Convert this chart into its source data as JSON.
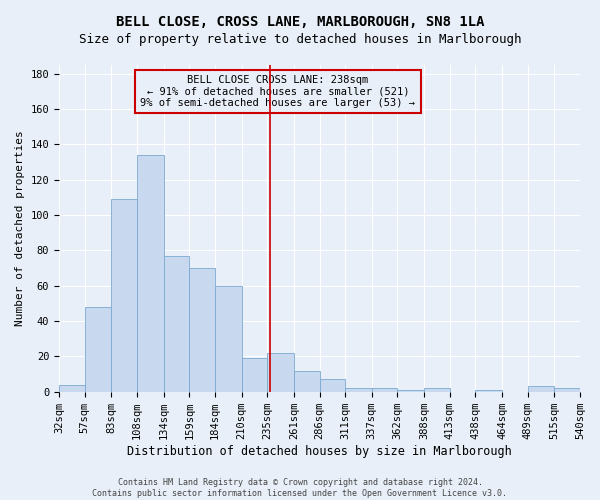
{
  "title": "BELL CLOSE, CROSS LANE, MARLBOROUGH, SN8 1LA",
  "subtitle": "Size of property relative to detached houses in Marlborough",
  "xlabel": "Distribution of detached houses by size in Marlborough",
  "ylabel": "Number of detached properties",
  "bar_color": "#c8d8ee",
  "bar_edge_color": "#7aaad0",
  "annotation_line_color": "#cc0000",
  "annotation_box_color": "#cc0000",
  "annotation_text": "BELL CLOSE CROSS LANE: 238sqm\n← 91% of detached houses are smaller (521)\n9% of semi-detached houses are larger (53) →",
  "property_size": 238,
  "footer": "Contains HM Land Registry data © Crown copyright and database right 2024.\nContains public sector information licensed under the Open Government Licence v3.0.",
  "bin_edges": [
    32,
    57,
    83,
    108,
    134,
    159,
    184,
    210,
    235,
    261,
    286,
    311,
    337,
    362,
    388,
    413,
    438,
    464,
    489,
    515,
    540
  ],
  "bar_heights": [
    4,
    48,
    109,
    134,
    77,
    70,
    60,
    19,
    22,
    12,
    7,
    2,
    2,
    1,
    2,
    0,
    1,
    0,
    3,
    2
  ],
  "ylim": [
    0,
    185
  ],
  "yticks": [
    0,
    20,
    40,
    60,
    80,
    100,
    120,
    140,
    160,
    180
  ],
  "bg_color": "#e8eff8",
  "grid_color": "#ffffff",
  "title_fontsize": 10,
  "subtitle_fontsize": 9,
  "xlabel_fontsize": 8.5,
  "ylabel_fontsize": 8,
  "tick_fontsize": 7.5,
  "annotation_fontsize": 7.5,
  "footer_fontsize": 6
}
